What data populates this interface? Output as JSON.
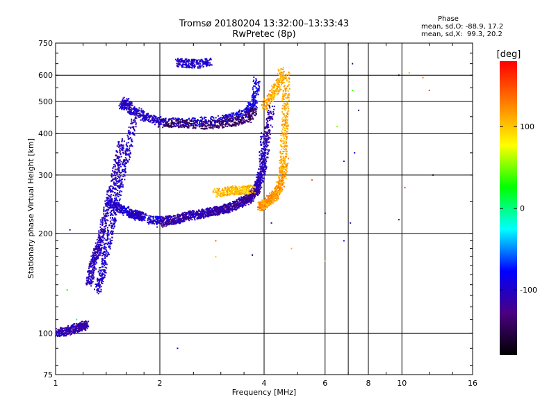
{
  "chart_data": {
    "type": "scatter",
    "title": "Tromsø 20180204 13:32:00–13:33:43",
    "subtitle": "RwPretec (8p)",
    "xlabel": "Frequency [MHz]",
    "ylabel": "Stationary phase Virtual Height [km]",
    "x_scale": "log",
    "y_scale": "log",
    "xlim": [
      1,
      16
    ],
    "ylim": [
      75,
      750
    ],
    "x_ticks": [
      1,
      2,
      4,
      6,
      8,
      10,
      16
    ],
    "x_grid": [
      2,
      4,
      6,
      7,
      8,
      10
    ],
    "y_ticks": [
      75,
      100,
      200,
      300,
      400,
      500,
      600,
      750
    ],
    "y_grid": [
      100,
      200,
      300,
      400,
      500,
      600
    ],
    "grid": true,
    "colorbar": {
      "label": "[deg]",
      "ticks": [
        100,
        0,
        -100
      ],
      "range": [
        -180,
        180
      ],
      "colors": [
        "#000000",
        "#4b0082",
        "#0000ff",
        "#00ffff",
        "#00ff00",
        "#ffff00",
        "#ff7f00",
        "#ff0000"
      ]
    },
    "phase_stats": {
      "heading": "Phase",
      "o_line": "mean, sd,O: -88.9, 17.2",
      "x_line": "mean, sd,X:  99.3, 20.2"
    },
    "traces": [
      {
        "x": [
          1.0,
          1.05,
          1.1,
          1.15,
          1.2,
          1.22
        ],
        "y": [
          100,
          101,
          102,
          104,
          105,
          106
        ],
        "phase": -110
      },
      {
        "x": [
          1.25,
          1.27,
          1.3,
          1.33,
          1.36,
          1.4,
          1.45,
          1.5,
          1.55
        ],
        "y": [
          140,
          155,
          170,
          180,
          200,
          230,
          270,
          320,
          380
        ],
        "phase": -105
      },
      {
        "x": [
          1.32,
          1.36,
          1.4,
          1.45,
          1.5,
          1.55,
          1.62,
          1.7
        ],
        "y": [
          135,
          150,
          175,
          210,
          250,
          300,
          360,
          450
        ],
        "phase": -100
      },
      {
        "x": [
          1.42,
          1.5,
          1.58,
          1.65,
          1.7,
          1.75,
          1.8
        ],
        "y": [
          250,
          240,
          235,
          230,
          228,
          225,
          225
        ],
        "phase": -100
      },
      {
        "x": [
          1.85,
          2.0,
          2.2,
          2.4,
          2.6,
          2.8,
          3.0,
          3.2,
          3.5,
          3.7,
          3.85,
          3.95,
          4.0
        ],
        "y": [
          220,
          218,
          220,
          225,
          228,
          232,
          235,
          240,
          250,
          262,
          280,
          320,
          400
        ],
        "phase": -95
      },
      {
        "x": [
          2.0,
          2.2,
          2.5,
          2.8,
          3.0,
          3.3,
          3.5,
          3.7,
          3.8
        ],
        "y": [
          215,
          220,
          228,
          232,
          236,
          242,
          250,
          258,
          270
        ],
        "phase": -120
      },
      {
        "x": [
          3.8,
          3.9,
          4.0,
          4.1,
          4.2
        ],
        "y": [
          270,
          290,
          330,
          400,
          480
        ],
        "phase": -110
      },
      {
        "x": [
          3.9,
          4.0,
          4.1,
          4.2,
          4.3,
          4.4,
          4.5,
          4.6
        ],
        "y": [
          240,
          245,
          250,
          255,
          260,
          270,
          290,
          330
        ],
        "phase": 120
      },
      {
        "x": [
          4.5,
          4.55,
          4.6,
          4.62,
          4.65
        ],
        "y": [
          300,
          350,
          420,
          500,
          620
        ],
        "phase": 110
      },
      {
        "x": [
          2.9,
          3.1,
          3.3,
          3.5,
          3.7
        ],
        "y": [
          265,
          268,
          270,
          270,
          272
        ],
        "phase": 105
      },
      {
        "x": [
          2.0,
          2.3,
          2.6,
          3.0,
          3.3,
          3.6,
          3.75,
          3.82
        ],
        "y": [
          435,
          432,
          435,
          440,
          450,
          470,
          500,
          580
        ],
        "phase": -90
      },
      {
        "x": [
          2.0,
          2.3,
          2.7,
          3.0,
          3.3,
          3.6,
          3.75
        ],
        "y": [
          430,
          428,
          425,
          428,
          435,
          445,
          470
        ],
        "phase": -140
      },
      {
        "x": [
          1.55,
          1.6,
          1.65,
          1.75,
          1.85,
          2.0
        ],
        "y": [
          480,
          500,
          470,
          460,
          445,
          435
        ],
        "phase": -100
      },
      {
        "x": [
          2.25,
          2.4,
          2.6,
          2.8
        ],
        "y": [
          655,
          650,
          650,
          655
        ],
        "phase": -100
      },
      {
        "x": [
          4.0,
          4.2,
          4.4,
          4.5
        ],
        "y": [
          480,
          520,
          560,
          620
        ],
        "phase": 110
      }
    ],
    "sparse_points": [
      {
        "x": 1.08,
        "y": 135,
        "phase": 20
      },
      {
        "x": 1.1,
        "y": 205,
        "phase": -100
      },
      {
        "x": 1.15,
        "y": 110,
        "phase": 0
      },
      {
        "x": 2.25,
        "y": 90,
        "phase": -100
      },
      {
        "x": 2.9,
        "y": 190,
        "phase": 140
      },
      {
        "x": 2.9,
        "y": 170,
        "phase": 100
      },
      {
        "x": 3.7,
        "y": 172,
        "phase": -150
      },
      {
        "x": 4.2,
        "y": 215,
        "phase": -110
      },
      {
        "x": 4.8,
        "y": 180,
        "phase": 110
      },
      {
        "x": 5.5,
        "y": 290,
        "phase": 150
      },
      {
        "x": 6.0,
        "y": 230,
        "phase": -80
      },
      {
        "x": 6.0,
        "y": 165,
        "phase": 100
      },
      {
        "x": 6.5,
        "y": 420,
        "phase": 50
      },
      {
        "x": 6.8,
        "y": 330,
        "phase": -110
      },
      {
        "x": 7.2,
        "y": 650,
        "phase": -140
      },
      {
        "x": 7.2,
        "y": 540,
        "phase": 40
      },
      {
        "x": 7.3,
        "y": 350,
        "phase": -100
      },
      {
        "x": 7.1,
        "y": 215,
        "phase": -110
      },
      {
        "x": 7.5,
        "y": 470,
        "phase": -150
      },
      {
        "x": 6.8,
        "y": 190,
        "phase": -90
      },
      {
        "x": 9.8,
        "y": 600,
        "phase": -170
      },
      {
        "x": 9.8,
        "y": 220,
        "phase": -130
      },
      {
        "x": 10.5,
        "y": 610,
        "phase": 110
      },
      {
        "x": 11.5,
        "y": 590,
        "phase": 130
      },
      {
        "x": 12.0,
        "y": 540,
        "phase": 150
      },
      {
        "x": 12.3,
        "y": 300,
        "phase": -170
      },
      {
        "x": 10.2,
        "y": 275,
        "phase": 150
      }
    ]
  }
}
